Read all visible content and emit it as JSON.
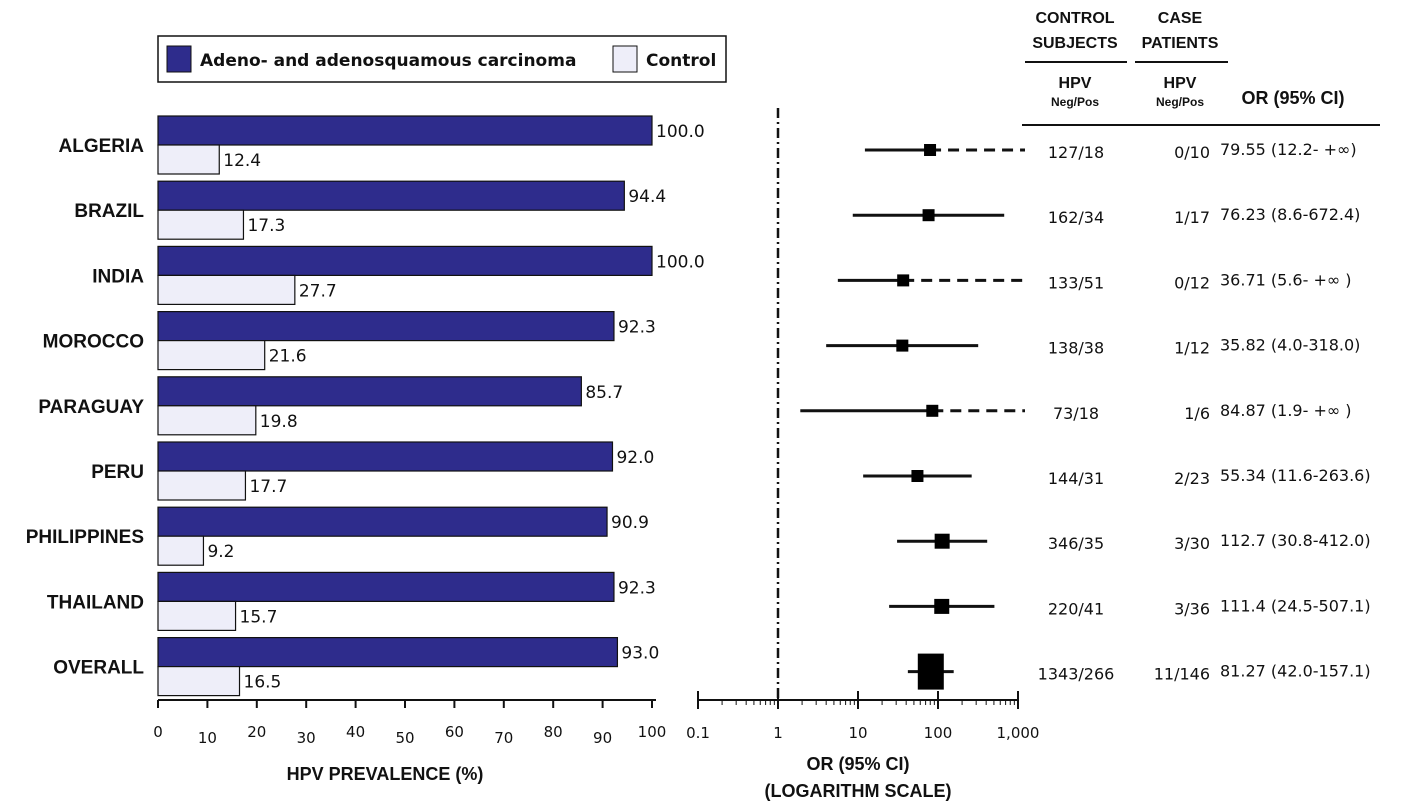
{
  "chart_data": [
    {
      "type": "bar",
      "orientation": "horizontal",
      "categories": [
        "ALGERIA",
        "BRAZIL",
        "INDIA",
        "MOROCCO",
        "PARAGUAY",
        "PERU",
        "PHILIPPINES",
        "THAILAND",
        "OVERALL"
      ],
      "series": [
        {
          "name": "Adeno- and adenosquamous carcinoma",
          "color": "#2e2c8c",
          "values": [
            100.0,
            94.4,
            100.0,
            92.3,
            85.7,
            92.0,
            90.9,
            92.3,
            93.0
          ]
        },
        {
          "name": "Control",
          "color": "#eeeef9",
          "values": [
            12.4,
            17.3,
            27.7,
            21.6,
            19.8,
            17.7,
            9.2,
            15.7,
            16.5
          ]
        }
      ],
      "value_labels": [
        [
          "100.0",
          "94.4",
          "100.0",
          "92.3",
          "85.7",
          "92.0",
          "90.9",
          "92.3",
          "93.0"
        ],
        [
          "12.4",
          "17.3",
          "27.7",
          "21.6",
          "19.8",
          "17.7",
          "9.2",
          "15.7",
          "16.5"
        ]
      ],
      "xlabel": "HPV PREVALENCE (%)",
      "xlim": [
        0,
        100
      ],
      "xticks": [
        "0",
        "10",
        "20",
        "30",
        "40",
        "50",
        "60",
        "70",
        "80",
        "90",
        "100"
      ],
      "legend": "top"
    },
    {
      "type": "scatter",
      "subtype": "forest-plot",
      "x_scale": "log",
      "xlim": [
        0.1,
        1000
      ],
      "xticks": [
        "0.1",
        "1",
        "10",
        "100",
        "1,000"
      ],
      "reference_line": 1,
      "xlabel_line1": "OR (95% CI)",
      "xlabel_line2": "(LOGARITHM SCALE)",
      "points": [
        {
          "category": "ALGERIA",
          "or": 79.55,
          "ci_low": 12.2,
          "ci_high": "+∞"
        },
        {
          "category": "BRAZIL",
          "or": 76.23,
          "ci_low": 8.6,
          "ci_high": 672.4
        },
        {
          "category": "INDIA",
          "or": 36.71,
          "ci_low": 5.6,
          "ci_high": "+∞"
        },
        {
          "category": "MOROCCO",
          "or": 35.82,
          "ci_low": 4.0,
          "ci_high": 318.0
        },
        {
          "category": "PARAGUAY",
          "or": 84.87,
          "ci_low": 1.9,
          "ci_high": "+∞"
        },
        {
          "category": "PERU",
          "or": 55.34,
          "ci_low": 11.6,
          "ci_high": 263.6
        },
        {
          "category": "PHILIPPINES",
          "or": 112.7,
          "ci_low": 30.8,
          "ci_high": 412.0
        },
        {
          "category": "THAILAND",
          "or": 111.4,
          "ci_low": 24.5,
          "ci_high": 507.1
        },
        {
          "category": "OVERALL",
          "or": 81.27,
          "ci_low": 42.0,
          "ci_high": 157.1
        }
      ]
    },
    {
      "type": "table",
      "headers": {
        "control_line1": "CONTROL",
        "control_line2": "SUBJECTS",
        "case_line1": "CASE",
        "case_line2": "PATIENTS",
        "hpv": "HPV",
        "negpos": "Neg/Pos",
        "or_ci": "OR (95% CI)"
      },
      "rows": [
        {
          "control": "127/18",
          "case": "0/10",
          "or_text": "79.55 (12.2-  +∞)"
        },
        {
          "control": "162/34",
          "case": "1/17",
          "or_text": "76.23 (8.6-672.4)"
        },
        {
          "control": "133/51",
          "case": "0/12",
          "or_text": "36.71 (5.6-  +∞ )"
        },
        {
          "control": "138/38",
          "case": "1/12",
          "or_text": "35.82 (4.0-318.0)"
        },
        {
          "control": "73/18",
          "case": "1/6",
          "or_text": "84.87 (1.9-  +∞ )"
        },
        {
          "control": "144/31",
          "case": "2/23",
          "or_text": "55.34 (11.6-263.6)"
        },
        {
          "control": "346/35",
          "case": "3/30",
          "or_text": "112.7 (30.8-412.0)"
        },
        {
          "control": "220/41",
          "case": "3/36",
          "or_text": "111.4 (24.5-507.1)"
        },
        {
          "control": "1343/266",
          "case": "11/146",
          "or_text": "81.27 (42.0-157.1)"
        }
      ]
    }
  ]
}
